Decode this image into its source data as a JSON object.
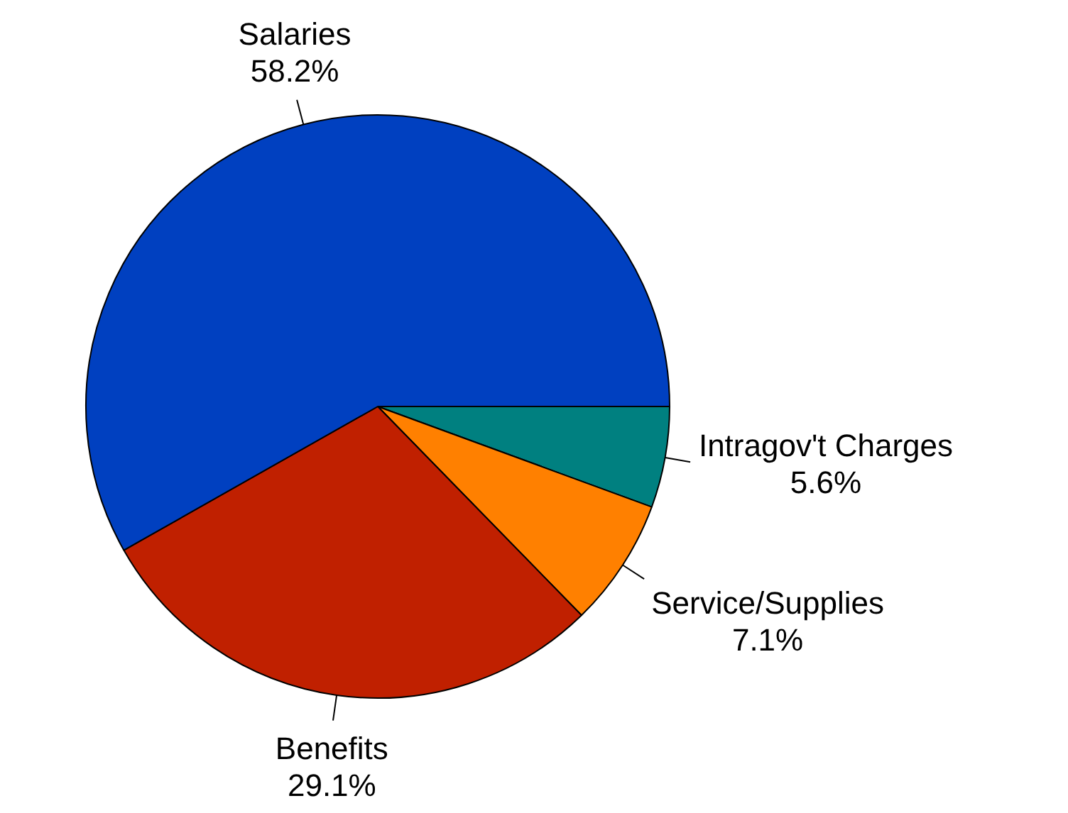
{
  "chart_data": {
    "type": "pie",
    "categories": [
      "Intragov't Charges",
      "Service/Supplies",
      "Benefits",
      "Salaries"
    ],
    "values": [
      5.6,
      7.1,
      29.1,
      58.2
    ],
    "colors": [
      "#008080",
      "#ff8000",
      "#c02000",
      "#0040c0"
    ],
    "value_labels": [
      "5.6%",
      "7.1%",
      "29.1%",
      "58.2%"
    ],
    "legend": false
  }
}
